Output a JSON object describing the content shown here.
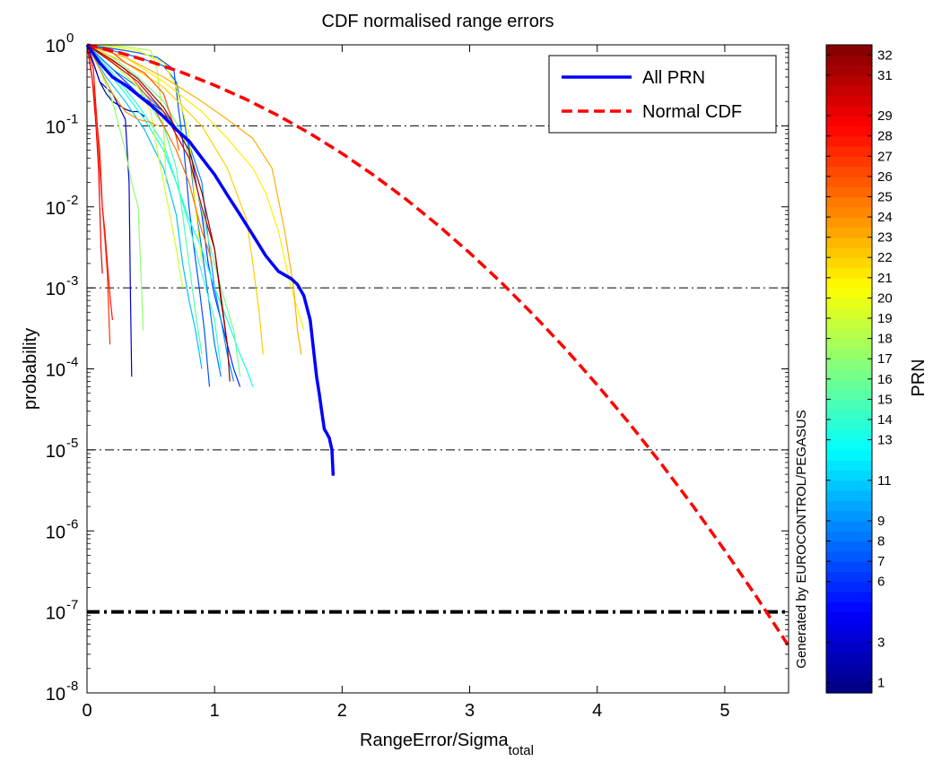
{
  "chart_data": {
    "type": "line",
    "title": "CDF normalised range errors",
    "xlabel": "RangeError/Sigma",
    "xlabel_subscript": "total",
    "ylabel": "probability",
    "y_scale": "log",
    "xlim": [
      0,
      5.5
    ],
    "ylim": [
      1e-08,
      1
    ],
    "x_ticks": [
      0,
      1,
      2,
      3,
      4,
      5
    ],
    "y_tick_exponents": [
      0,
      -1,
      -2,
      -3,
      -4,
      -5,
      -6,
      -7,
      -8
    ],
    "y_tick_base": "10",
    "grid": "dash-dot horizontal lines at 1e-1, 1e-3, 1e-5; heavy dash-dot line at 1e-7",
    "legend_position": "top-right",
    "legend": [
      {
        "label": "All PRN",
        "color": "#0000ff",
        "style": "solid"
      },
      {
        "label": "Normal CDF",
        "color": "#ff0000",
        "style": "dashed"
      }
    ],
    "watermark": "Generated by EUROCONTROL/PEGASUS",
    "colorbar": {
      "label": "PRN",
      "min": 0.5,
      "max": 32.5,
      "ticks": [
        1,
        3,
        6,
        7,
        8,
        9,
        11,
        13,
        14,
        15,
        16,
        17,
        18,
        19,
        20,
        21,
        22,
        23,
        24,
        25,
        26,
        27,
        28,
        29,
        31,
        32
      ],
      "colormap": "jet"
    },
    "series": [
      {
        "name": "All PRN",
        "color": "#0000ff",
        "style": "solid",
        "x": [
          0,
          0.1,
          0.2,
          0.3,
          0.4,
          0.5,
          0.6,
          0.7,
          0.8,
          0.9,
          1.0,
          1.1,
          1.2,
          1.3,
          1.4,
          1.5,
          1.6,
          1.65,
          1.7,
          1.75,
          1.78,
          1.8,
          1.82,
          1.84,
          1.86,
          1.88,
          1.9,
          1.92,
          1.93
        ],
        "y": [
          1,
          0.6,
          0.4,
          0.32,
          0.24,
          0.18,
          0.13,
          0.09,
          0.065,
          0.04,
          0.025,
          0.014,
          0.008,
          0.0045,
          0.0025,
          0.0016,
          0.0013,
          0.0011,
          0.0008,
          0.0004,
          0.00015,
          8e-05,
          5e-05,
          3e-05,
          1.8e-05,
          1.6e-05,
          1.4e-05,
          1e-05,
          4.8e-06
        ]
      },
      {
        "name": "Normal CDF",
        "color": "#ff0000",
        "style": "dashed",
        "x": [
          0,
          0.25,
          0.5,
          0.75,
          1.0,
          1.25,
          1.5,
          1.75,
          2.0,
          2.25,
          2.5,
          2.75,
          3.0,
          3.25,
          3.5,
          3.75,
          4.0,
          4.25,
          4.5,
          4.75,
          5.0,
          5.25,
          5.5
        ],
        "y": [
          1,
          0.8026,
          0.6171,
          0.4533,
          0.3173,
          0.2113,
          0.1336,
          0.0801,
          0.0455,
          0.02445,
          0.01242,
          0.005959,
          0.0027,
          0.001154,
          0.000465,
          0.0001768,
          6.33e-05,
          2.139e-05,
          6.795e-06,
          2.034e-06,
          5.733e-07,
          1.522e-07,
          3.798e-08
        ]
      },
      {
        "name": "PRN 1",
        "color": "#00008f",
        "x": [
          0,
          0.05,
          0.1,
          0.15,
          0.2,
          0.25,
          0.3,
          0.35,
          0.4,
          0.45
        ],
        "y": [
          1,
          0.6,
          0.35,
          0.25,
          0.2,
          0.18,
          0.16,
          0.15,
          0.15,
          0.13
        ]
      },
      {
        "name": "PRN 3",
        "color": "#0000cf",
        "x": [
          0,
          0.1,
          0.2,
          0.3,
          0.33,
          0.34,
          0.35
        ],
        "y": [
          1,
          0.35,
          0.25,
          0.12,
          0.02,
          0.001,
          8e-05
        ]
      },
      {
        "name": "PRN 6",
        "color": "#0030ff",
        "x": [
          0,
          0.2,
          0.4,
          0.6,
          0.8,
          0.9,
          0.95,
          1.0,
          1.05,
          1.1,
          1.15,
          1.2
        ],
        "y": [
          1,
          0.5,
          0.25,
          0.15,
          0.06,
          0.008,
          0.002,
          0.0008,
          0.0004,
          0.0002,
          0.0001,
          6e-05
        ]
      },
      {
        "name": "PRN 7",
        "color": "#0050ff",
        "x": [
          0,
          0.2,
          0.4,
          0.55,
          0.68,
          0.72,
          0.76,
          0.8,
          0.84,
          0.88,
          0.92,
          0.96
        ],
        "y": [
          1,
          0.9,
          0.8,
          0.7,
          0.5,
          0.15,
          0.05,
          0.01,
          0.003,
          0.001,
          0.0003,
          6e-05
        ]
      },
      {
        "name": "PRN 8",
        "color": "#0070ff",
        "x": [
          0,
          0.2,
          0.4,
          0.6,
          0.7,
          0.75,
          0.8,
          0.85,
          0.9,
          0.95,
          1.0,
          1.05
        ],
        "y": [
          1,
          0.85,
          0.7,
          0.55,
          0.35,
          0.15,
          0.05,
          0.01,
          0.003,
          0.0008,
          0.0002,
          8e-05
        ]
      },
      {
        "name": "PRN 9",
        "color": "#0090ff",
        "x": [
          0,
          0.2,
          0.4,
          0.6,
          0.8,
          0.9,
          0.95,
          1.0,
          1.05,
          1.1,
          1.15
        ],
        "y": [
          1,
          0.5,
          0.3,
          0.15,
          0.06,
          0.02,
          0.004,
          0.001,
          0.0004,
          0.00015,
          7e-05
        ]
      },
      {
        "name": "PRN 11",
        "color": "#00c0ff",
        "x": [
          0,
          0.15,
          0.3,
          0.45,
          0.6,
          0.7,
          0.75,
          0.8,
          0.85,
          0.9
        ],
        "y": [
          1,
          0.4,
          0.2,
          0.09,
          0.03,
          0.008,
          0.002,
          0.0007,
          0.0003,
          0.0001
        ]
      },
      {
        "name": "PRN 13",
        "color": "#10ffef",
        "x": [
          0,
          0.15,
          0.3,
          0.45,
          0.6,
          0.7,
          0.8,
          0.9,
          1.0,
          1.1,
          1.2,
          1.25,
          1.3
        ],
        "y": [
          1,
          0.5,
          0.25,
          0.12,
          0.05,
          0.02,
          0.007,
          0.003,
          0.001,
          0.0004,
          0.00015,
          0.0001,
          6e-05
        ]
      },
      {
        "name": "PRN 14",
        "color": "#30ffcf",
        "x": [
          0,
          0.2,
          0.4,
          0.6,
          0.7,
          0.8,
          0.9,
          1.0,
          1.05
        ],
        "y": [
          1,
          0.45,
          0.18,
          0.06,
          0.02,
          0.006,
          0.0015,
          0.0004,
          0.0001
        ]
      },
      {
        "name": "PRN 15",
        "color": "#50ffaf",
        "x": [
          0,
          0.2,
          0.4,
          0.6,
          0.7,
          0.75,
          0.8,
          0.85,
          0.9
        ],
        "y": [
          1,
          0.6,
          0.3,
          0.1,
          0.03,
          0.008,
          0.002,
          0.0005,
          0.00015
        ]
      },
      {
        "name": "PRN 16",
        "color": "#70ff8f",
        "x": [
          0,
          0.2,
          0.4,
          0.6,
          0.75,
          0.85,
          0.95,
          1.05,
          1.15,
          1.2
        ],
        "y": [
          1,
          0.7,
          0.4,
          0.2,
          0.08,
          0.02,
          0.004,
          0.001,
          0.0003,
          8e-05
        ]
      },
      {
        "name": "PRN 17",
        "color": "#8fff70",
        "x": [
          0,
          0.1,
          0.2,
          0.3,
          0.35,
          0.4,
          0.42,
          0.44
        ],
        "y": [
          1,
          0.5,
          0.2,
          0.05,
          0.02,
          0.01,
          0.002,
          0.0003
        ]
      },
      {
        "name": "PRN 18",
        "color": "#afff50",
        "x": [
          0,
          0.2,
          0.3,
          0.4,
          0.5,
          0.55,
          0.6,
          0.62
        ],
        "y": [
          1,
          0.97,
          0.95,
          0.9,
          0.85,
          0.5,
          0.1,
          0.02
        ]
      },
      {
        "name": "PRN 19",
        "color": "#cfff30",
        "x": [
          0,
          0.2,
          0.4,
          0.5,
          0.55,
          0.6,
          0.65,
          0.7,
          0.75
        ],
        "y": [
          1,
          0.6,
          0.3,
          0.15,
          0.05,
          0.02,
          0.008,
          0.003,
          0.001
        ]
      },
      {
        "name": "PRN 20",
        "color": "#efff10",
        "x": [
          0,
          0.2,
          0.4,
          0.6,
          0.7,
          0.8,
          0.85,
          0.9
        ],
        "y": [
          1,
          0.95,
          0.85,
          0.6,
          0.3,
          0.08,
          0.01,
          0.002
        ]
      },
      {
        "name": "PRN 21",
        "color": "#ffef00",
        "x": [
          0,
          0.3,
          0.6,
          0.9,
          1.1,
          1.3,
          1.4,
          1.5,
          1.6,
          1.7
        ],
        "y": [
          1,
          0.7,
          0.35,
          0.15,
          0.07,
          0.03,
          0.015,
          0.005,
          0.001,
          0.0003
        ]
      },
      {
        "name": "PRN 22",
        "color": "#ffcf00",
        "x": [
          0,
          0.3,
          0.6,
          0.9,
          1.1,
          1.25,
          1.3,
          1.35,
          1.38
        ],
        "y": [
          1,
          0.6,
          0.3,
          0.1,
          0.03,
          0.007,
          0.002,
          0.0005,
          0.00015
        ]
      },
      {
        "name": "PRN 23",
        "color": "#ffaf00",
        "x": [
          0,
          0.3,
          0.6,
          0.9,
          1.1,
          1.3,
          1.45,
          1.55,
          1.62,
          1.65,
          1.68
        ],
        "y": [
          1,
          0.7,
          0.4,
          0.2,
          0.12,
          0.07,
          0.03,
          0.005,
          0.001,
          0.0003,
          0.00015
        ]
      },
      {
        "name": "PRN 24",
        "color": "#ff8f00",
        "x": [
          0,
          0.1,
          0.2,
          0.3,
          0.4,
          0.5,
          0.55
        ],
        "y": [
          1,
          0.5,
          0.25,
          0.15,
          0.12,
          0.11,
          0.1
        ]
      },
      {
        "name": "PRN 25",
        "color": "#ff7000",
        "x": [
          0,
          0.3,
          0.5,
          0.6,
          0.7,
          0.8,
          0.85,
          0.9,
          0.95,
          0.98
        ],
        "y": [
          1,
          0.5,
          0.2,
          0.1,
          0.05,
          0.02,
          0.01,
          0.005,
          0.003,
          0.002
        ]
      },
      {
        "name": "PRN 26",
        "color": "#ff5000",
        "x": [
          0,
          0.2,
          0.3,
          0.45,
          0.6,
          0.68,
          0.72
        ],
        "y": [
          1,
          0.8,
          0.6,
          0.45,
          0.25,
          0.1,
          0.05
        ]
      },
      {
        "name": "PRN 27",
        "color": "#ff3000",
        "x": [
          0,
          0.05,
          0.1,
          0.12,
          0.14,
          0.16,
          0.17,
          0.18
        ],
        "y": [
          1,
          0.3,
          0.05,
          0.01,
          0.004,
          0.0015,
          0.0005,
          0.0002
        ]
      },
      {
        "name": "PRN 28",
        "color": "#ff1000",
        "x": [
          0,
          0.05,
          0.08,
          0.1,
          0.12,
          0.14,
          0.16,
          0.18,
          0.2
        ],
        "y": [
          1,
          0.5,
          0.1,
          0.03,
          0.01,
          0.005,
          0.002,
          0.0008,
          0.0004
        ]
      },
      {
        "name": "PRN 29",
        "color": "#ef0000",
        "x": [
          0,
          0.04,
          0.07,
          0.09,
          0.1,
          0.11,
          0.12
        ],
        "y": [
          1,
          0.4,
          0.1,
          0.03,
          0.01,
          0.003,
          0.0015
        ]
      },
      {
        "name": "PRN 31",
        "color": "#cf0000",
        "x": [
          0,
          0.2,
          0.4,
          0.6,
          0.8,
          0.9,
          1.0,
          1.05,
          1.1
        ],
        "y": [
          1,
          0.6,
          0.35,
          0.15,
          0.04,
          0.01,
          0.003,
          0.0008,
          0.0002
        ]
      },
      {
        "name": "PRN 32",
        "color": "#8f0000",
        "x": [
          0,
          0.2,
          0.4,
          0.6,
          0.8,
          0.9,
          1.0,
          1.05,
          1.1,
          1.12
        ],
        "y": [
          1,
          0.65,
          0.38,
          0.17,
          0.05,
          0.015,
          0.003,
          0.0007,
          0.0002,
          7e-05
        ]
      }
    ]
  }
}
